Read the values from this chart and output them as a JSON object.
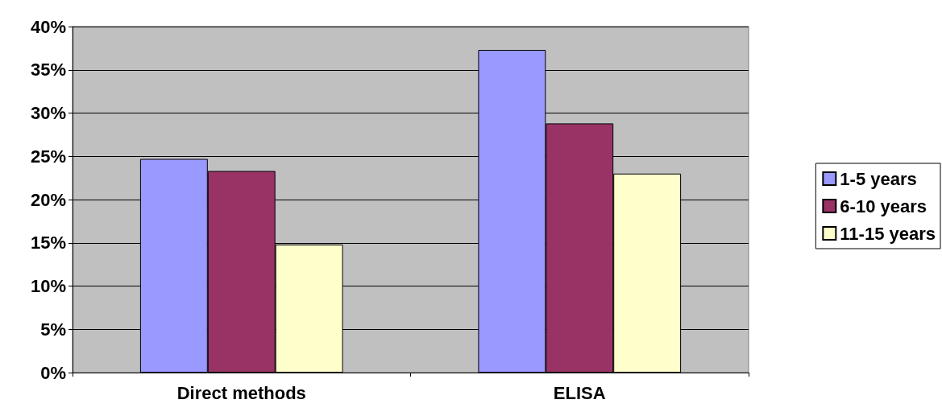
{
  "chart_data": {
    "type": "bar",
    "categories": [
      "Direct methods",
      "ELISA"
    ],
    "series": [
      {
        "name": "1-5 years",
        "color": "#9999ff",
        "values": [
          24.7,
          37.3
        ]
      },
      {
        "name": "6-10 years",
        "color": "#993366",
        "values": [
          23.3,
          28.8
        ]
      },
      {
        "name": "11-15 years",
        "color": "#ffffcc",
        "values": [
          14.8,
          23
        ]
      }
    ],
    "ylim": [
      0,
      40
    ],
    "yticks": [
      {
        "value": 0,
        "label": "0%"
      },
      {
        "value": 5,
        "label": "5%"
      },
      {
        "value": 10,
        "label": "10%"
      },
      {
        "value": 15,
        "label": "15%"
      },
      {
        "value": 20,
        "label": "20%"
      },
      {
        "value": 25,
        "label": "25%"
      },
      {
        "value": 30,
        "label": "30%"
      },
      {
        "value": 35,
        "label": "35%"
      },
      {
        "value": 40,
        "label": "40%"
      }
    ],
    "grid": "y",
    "legend": "right"
  }
}
